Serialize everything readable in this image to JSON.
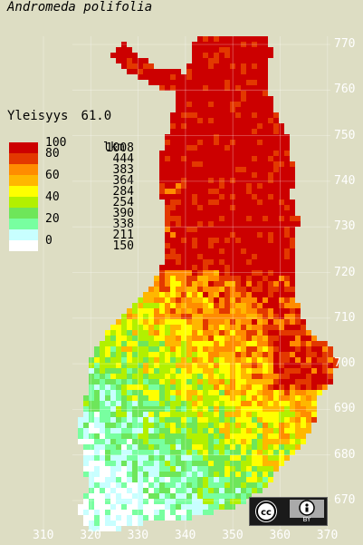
{
  "title": "Andromeda polifolia",
  "prevalence": {
    "label": "Yleisyys",
    "value": "61.0"
  },
  "legend": {
    "count_header": "lkm",
    "items": [
      {
        "pct": "100",
        "count": "1008",
        "color": "#cc0000"
      },
      {
        "pct": "80",
        "count": "444",
        "color": "#e33800"
      },
      {
        "pct": "",
        "count": "383",
        "color": "#ff8c00"
      },
      {
        "pct": "60",
        "count": "364",
        "color": "#ffb700"
      },
      {
        "pct": "",
        "count": "284",
        "color": "#ffff00"
      },
      {
        "pct": "40",
        "count": "254",
        "color": "#b2f000"
      },
      {
        "pct": "",
        "count": "390",
        "color": "#6ee65a"
      },
      {
        "pct": "20",
        "count": "338",
        "color": "#78ffa0"
      },
      {
        "pct": "",
        "count": "211",
        "color": "#c8ffff"
      },
      {
        "pct": "0",
        "count": "150",
        "color": "#ffffff"
      }
    ]
  },
  "y_ticks": [
    "770",
    "760",
    "750",
    "740",
    "730",
    "720",
    "710",
    "700",
    "690",
    "680",
    "670"
  ],
  "x_ticks": [
    "310",
    "320",
    "330",
    "340",
    "350",
    "360",
    "370"
  ],
  "license": {
    "badge": "cc",
    "attribution": "BY",
    "icon": "creative-commons-by-icon"
  }
}
